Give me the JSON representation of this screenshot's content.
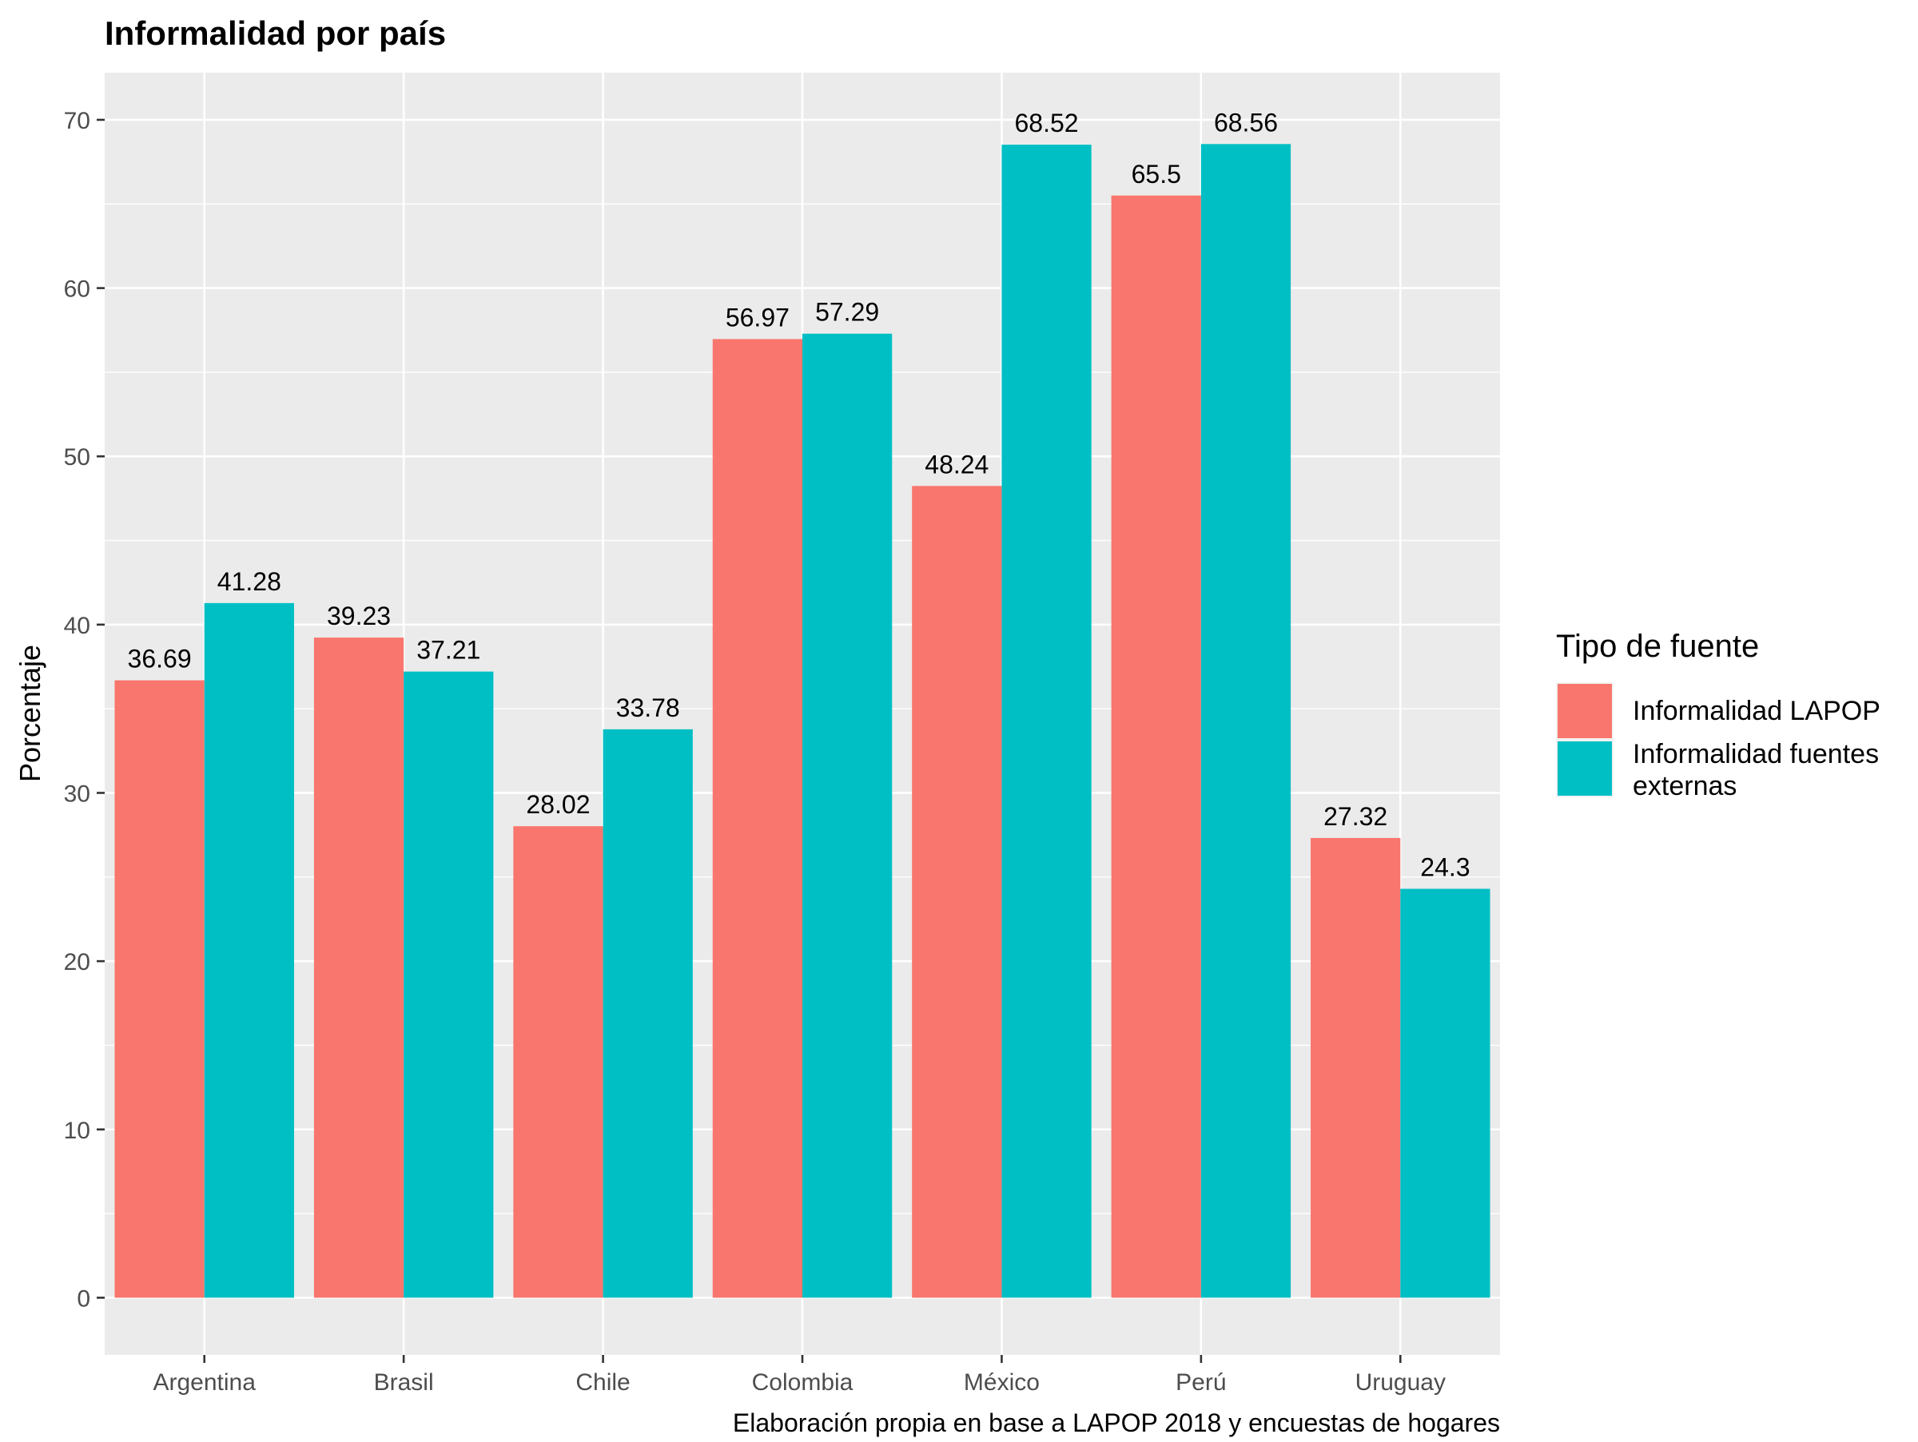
{
  "chart_data": {
    "type": "bar",
    "title": "Informalidad por país",
    "xlabel": "",
    "ylabel": "Porcentaje",
    "caption": "Elaboración propia en base a LAPOP 2018 y encuestas de hogares",
    "categories": [
      "Argentina",
      "Brasil",
      "Chile",
      "Colombia",
      "México",
      "Perú",
      "Uruguay"
    ],
    "series": [
      {
        "name": "Informalidad LAPOP",
        "color": "#F8766D",
        "values": [
          36.69,
          39.23,
          28.02,
          56.97,
          48.24,
          65.5,
          27.32
        ]
      },
      {
        "name": "Informalidad fuentes externas",
        "color": "#00BFC4",
        "values": [
          41.28,
          37.21,
          33.78,
          57.29,
          68.52,
          68.56,
          24.3
        ]
      }
    ],
    "ylim": [
      -3.4,
      72.8
    ],
    "yticks": [
      0,
      10,
      20,
      30,
      40,
      50,
      60,
      70
    ],
    "legend": {
      "title": "Tipo de fuente",
      "position": "right"
    },
    "grid": true,
    "panel_color": "#EBEBEB"
  }
}
